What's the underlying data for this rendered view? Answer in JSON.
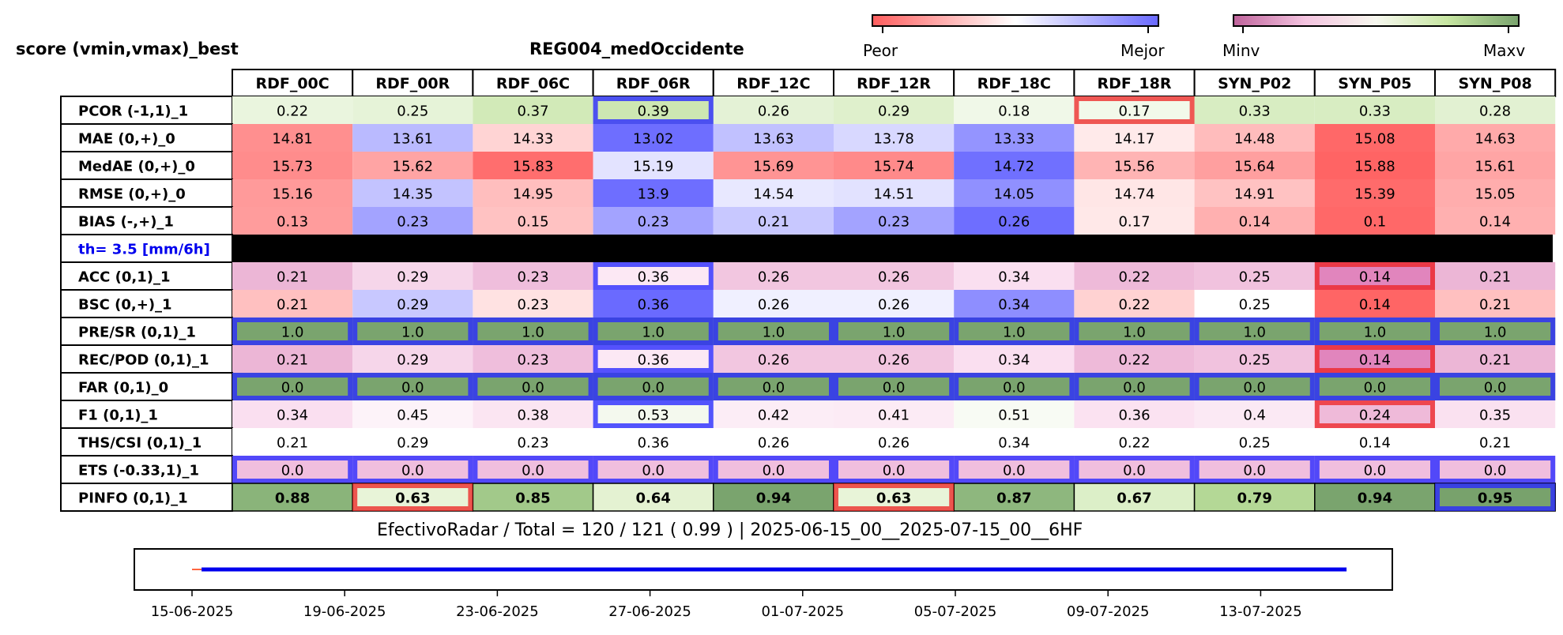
{
  "header": {
    "left_title": "score (vmin,vmax)_best",
    "region": "REG004_medOccidente",
    "colorbar1": {
      "min_label": "Peor",
      "max_label": "Mejor",
      "colors": [
        "#ff5f5f",
        "#ffffff",
        "#6a6aff"
      ]
    },
    "colorbar2": {
      "min_label": "Minv",
      "max_label": "Maxv",
      "colors": [
        "#c0649c",
        "#f6f7ee",
        "#7aa46e"
      ]
    }
  },
  "chart_data": [
    {
      "type": "table",
      "columns": [
        "RDF_00C",
        "RDF_00R",
        "RDF_06C",
        "RDF_06R",
        "RDF_12C",
        "RDF_12R",
        "RDF_18C",
        "RDF_18R",
        "SYN_P02",
        "SYN_P05",
        "SYN_P08"
      ],
      "separator_label": "th= 3.5 [mm/6h]",
      "rows": [
        {
          "label": "PCOR (-1,1)_1",
          "values": [
            "0.22",
            "0.25",
            "0.37",
            "0.39",
            "0.26",
            "0.29",
            "0.18",
            "0.17",
            "0.33",
            "0.33",
            "0.28"
          ],
          "colors": [
            "#eaf5de",
            "#e6f3d8",
            "#d2eab8",
            "#cde7b2",
            "#e4f2d6",
            "#dff0cc",
            "#f0f8e8",
            "#f2f9ea",
            "#d8edc2",
            "#d8edc2",
            "#e2f1d2"
          ],
          "best": [
            3
          ],
          "worst": [
            7
          ]
        },
        {
          "label": "MAE (0,+)_0",
          "values": [
            "14.81",
            "13.61",
            "14.33",
            "13.02",
            "13.63",
            "13.78",
            "13.33",
            "14.17",
            "14.48",
            "15.08",
            "14.63"
          ],
          "colors": [
            "#ff8f8f",
            "#babaff",
            "#ffd4d4",
            "#6e6eff",
            "#c1c1ff",
            "#d8d8ff",
            "#9494ff",
            "#ffeaea",
            "#ffbcbc",
            "#ff6868",
            "#ffaaaa"
          ],
          "best": [],
          "worst": []
        },
        {
          "label": "MedAE (0,+)_0",
          "values": [
            "15.73",
            "15.62",
            "15.83",
            "15.19",
            "15.69",
            "15.74",
            "14.72",
            "15.56",
            "15.64",
            "15.88",
            "15.61"
          ],
          "colors": [
            "#ff8c8c",
            "#ffa4a4",
            "#ff6e6e",
            "#e3e3ff",
            "#ff9494",
            "#ff8a8a",
            "#7070ff",
            "#ffb4b4",
            "#ff9f9f",
            "#ff6464",
            "#ffa5a5"
          ],
          "best": [],
          "worst": []
        },
        {
          "label": "RMSE (0,+)_0",
          "values": [
            "15.16",
            "14.35",
            "14.95",
            "13.9",
            "14.54",
            "14.51",
            "14.05",
            "14.74",
            "14.91",
            "15.39",
            "15.05"
          ],
          "colors": [
            "#ff9a9a",
            "#c3c3ff",
            "#ffbebe",
            "#6e6eff",
            "#e8e8ff",
            "#e2e2ff",
            "#9090ff",
            "#ffe6e6",
            "#ffc2c2",
            "#ff6b6b",
            "#ffadad"
          ],
          "best": [],
          "worst": []
        },
        {
          "label": "BIAS (-,+)_1",
          "values": [
            "0.13",
            "0.23",
            "0.15",
            "0.23",
            "0.21",
            "0.23",
            "0.26",
            "0.17",
            "0.14",
            "0.1",
            "0.14"
          ],
          "colors": [
            "#ff9c9c",
            "#a3a3ff",
            "#ffc2c2",
            "#a3a3ff",
            "#c8c8ff",
            "#a3a3ff",
            "#6e6eff",
            "#ffe8e8",
            "#ffb0b0",
            "#ff6868",
            "#ffb0b0"
          ],
          "best": [],
          "worst": []
        },
        {
          "separator": true
        },
        {
          "label": "ACC (0,1)_1",
          "values": [
            "0.21",
            "0.29",
            "0.23",
            "0.36",
            "0.26",
            "0.26",
            "0.34",
            "0.22",
            "0.25",
            "0.14",
            "0.21"
          ],
          "colors": [
            "#ecb6d6",
            "#f6d6ea",
            "#efbedc",
            "#fce8f4",
            "#f2c6e0",
            "#f2c6e0",
            "#fadff0",
            "#eebad9",
            "#f1c2de",
            "#e185bd",
            "#ecb6d6"
          ],
          "best": [
            3
          ],
          "worst": [
            9
          ]
        },
        {
          "label": "BSC (0,+)_1",
          "values": [
            "0.21",
            "0.29",
            "0.23",
            "0.36",
            "0.26",
            "0.26",
            "0.34",
            "0.22",
            "0.25",
            "0.14",
            "0.21"
          ],
          "colors": [
            "#ffc0c0",
            "#c8c8ff",
            "#ffe2e2",
            "#6a6aff",
            "#f0f0ff",
            "#f0f0ff",
            "#8e8eff",
            "#ffd2d2",
            "#ffffff",
            "#ff6565",
            "#ffc0c0"
          ],
          "best": [],
          "worst": []
        },
        {
          "label": "PRE/SR (0,1)_1",
          "values": [
            "1.0",
            "1.0",
            "1.0",
            "1.0",
            "1.0",
            "1.0",
            "1.0",
            "1.0",
            "1.0",
            "1.0",
            "1.0"
          ],
          "colors": [
            "#7aa46e",
            "#7aa46e",
            "#7aa46e",
            "#7aa46e",
            "#7aa46e",
            "#7aa46e",
            "#7aa46e",
            "#7aa46e",
            "#7aa46e",
            "#7aa46e",
            "#7aa46e"
          ],
          "best": [
            0,
            1,
            2,
            3,
            4,
            5,
            6,
            7,
            8,
            9,
            10
          ],
          "worst": []
        },
        {
          "label": "REC/POD (0,1)_1",
          "values": [
            "0.21",
            "0.29",
            "0.23",
            "0.36",
            "0.26",
            "0.26",
            "0.34",
            "0.22",
            "0.25",
            "0.14",
            "0.21"
          ],
          "colors": [
            "#ecb6d6",
            "#f6d6ea",
            "#efbedc",
            "#fce8f4",
            "#f2c6e0",
            "#f2c6e0",
            "#fadff0",
            "#eebad9",
            "#f1c2de",
            "#e185bd",
            "#ecb6d6"
          ],
          "best": [
            3
          ],
          "worst": [
            9
          ]
        },
        {
          "label": "FAR (0,1)_0",
          "values": [
            "0.0",
            "0.0",
            "0.0",
            "0.0",
            "0.0",
            "0.0",
            "0.0",
            "0.0",
            "0.0",
            "0.0",
            "0.0"
          ],
          "colors": [
            "#7aa46e",
            "#7aa46e",
            "#7aa46e",
            "#7aa46e",
            "#7aa46e",
            "#7aa46e",
            "#7aa46e",
            "#7aa46e",
            "#7aa46e",
            "#7aa46e",
            "#7aa46e"
          ],
          "best": [
            0,
            1,
            2,
            3,
            4,
            5,
            6,
            7,
            8,
            9,
            10
          ],
          "worst": []
        },
        {
          "label": "F1 (0,1)_1",
          "values": [
            "0.34",
            "0.45",
            "0.38",
            "0.53",
            "0.42",
            "0.41",
            "0.51",
            "0.36",
            "0.4",
            "0.24",
            "0.35"
          ],
          "colors": [
            "#fadff0",
            "#fdf3f9",
            "#fbe5f2",
            "#f4f9ee",
            "#fcedf6",
            "#fcebf5",
            "#f8fbf4",
            "#fbe2f1",
            "#fbe9f4",
            "#efbad9",
            "#fae1f0"
          ],
          "best": [
            3
          ],
          "worst": [
            9
          ]
        },
        {
          "label": "THS/CSI (0,1)_1",
          "values": [
            "0.21",
            "0.29",
            "0.23",
            "0.36",
            "0.26",
            "0.26",
            "0.34",
            "0.22",
            "0.25",
            "0.14",
            "0.21"
          ],
          "colors": [
            "#ffffff",
            "#ffffff",
            "#ffffff",
            "#ffffff",
            "#ffffff",
            "#ffffff",
            "#ffffff",
            "#ffffff",
            "#ffffff",
            "#ffffff",
            "#ffffff"
          ],
          "best": [],
          "worst": []
        },
        {
          "label": "ETS (-0.33,1)_1",
          "values": [
            "0.0",
            "0.0",
            "0.0",
            "0.0",
            "0.0",
            "0.0",
            "0.0",
            "0.0",
            "0.0",
            "0.0",
            "0.0"
          ],
          "colors": [
            "#f0bede",
            "#f0bede",
            "#f0bede",
            "#f0bede",
            "#f0bede",
            "#f0bede",
            "#f0bede",
            "#f0bede",
            "#f0bede",
            "#f0bede",
            "#f0bede"
          ],
          "best": [
            0,
            1,
            2,
            3,
            4,
            5,
            6,
            7,
            8,
            9,
            10
          ],
          "worst": []
        },
        {
          "label": "PINFO (0,1)_1",
          "values": [
            "0.88",
            "0.63",
            "0.85",
            "0.64",
            "0.94",
            "0.63",
            "0.87",
            "0.67",
            "0.79",
            "0.94",
            "0.95"
          ],
          "colors": [
            "#8ab47a",
            "#e8f4d8",
            "#a2c98a",
            "#e4f2d2",
            "#7aa46e",
            "#e8f4d8",
            "#8eb77e",
            "#dcefc8",
            "#b4d896",
            "#7aa46e",
            "#78a26c"
          ],
          "best": [
            10
          ],
          "worst": [
            1,
            5
          ],
          "bold": true
        }
      ]
    },
    {
      "type": "line",
      "title": "EfectivoRadar / Total  =  120 / 121 ( 0.99 ) | 2025-06-15_00__2025-07-15_00__6HF",
      "x_tick_labels": [
        "15-06-2025",
        "19-06-2025",
        "23-06-2025",
        "27-06-2025",
        "01-07-2025",
        "05-07-2025",
        "09-07-2025",
        "13-07-2025"
      ],
      "x_range_days": [
        0,
        31.6
      ],
      "series": [
        {
          "color": "#0000ee",
          "x_start_day": 0.25,
          "x_end_day": 30.25,
          "y": 1
        },
        {
          "color": "#ff3300",
          "x_start_day": 0.0,
          "x_end_day": 0.25,
          "y": 1
        }
      ]
    }
  ]
}
